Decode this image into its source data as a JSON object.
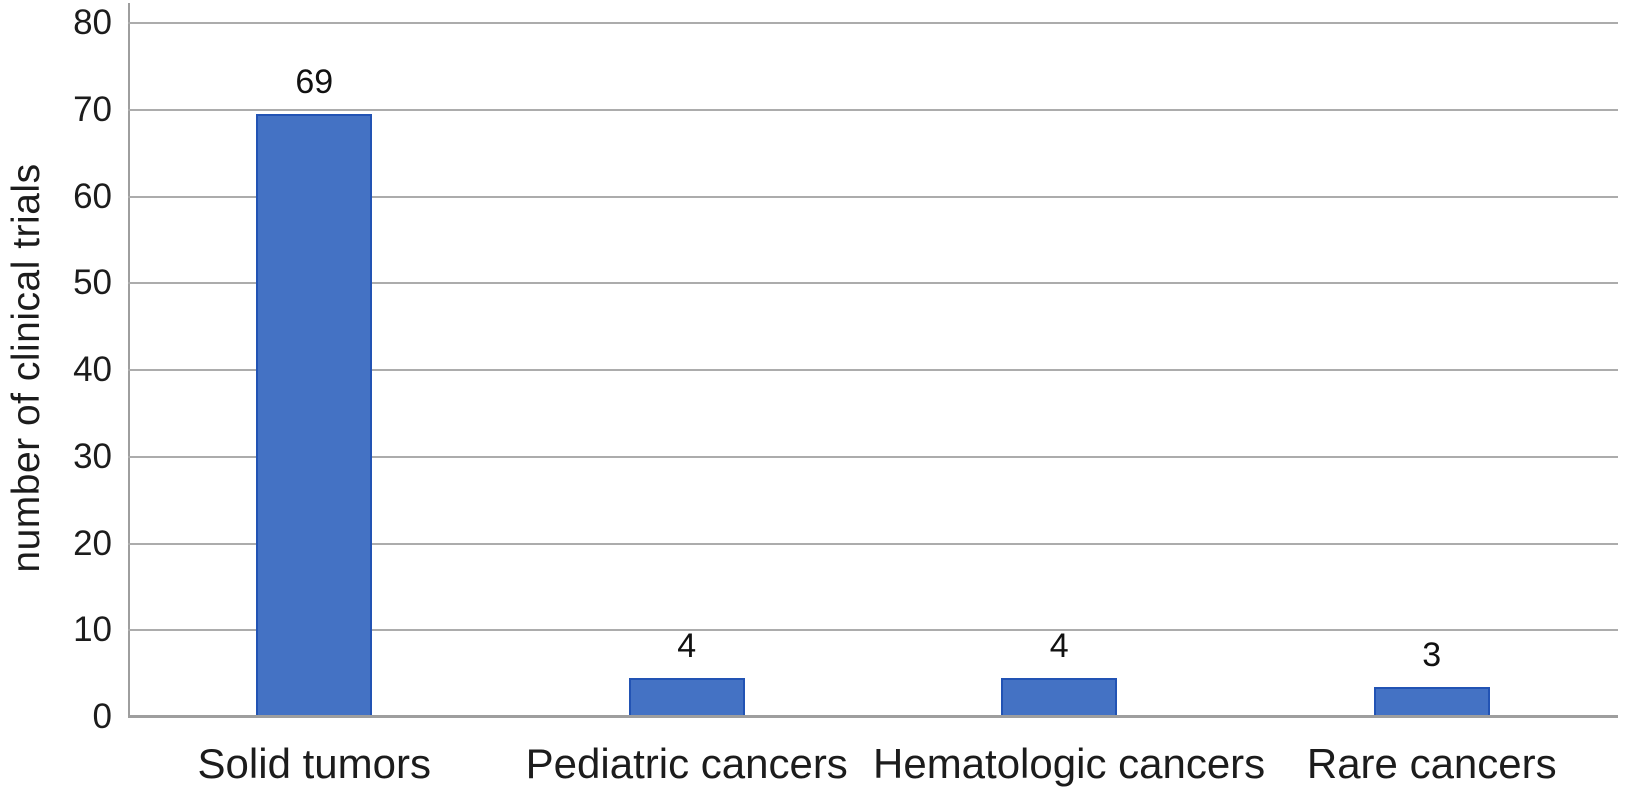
{
  "chart_data": {
    "type": "bar",
    "title": "",
    "categories": [
      "Solid tumors",
      "Pediatric cancers",
      "Hematologic cancers",
      "Rare cancers"
    ],
    "values": [
      69,
      4,
      4,
      3
    ],
    "xlabel": "",
    "ylabel": "number of clinical trials",
    "ylim": [
      0,
      80
    ],
    "yticks": [
      0,
      10,
      20,
      30,
      40,
      50,
      60,
      70,
      80
    ],
    "grid": "horizontal",
    "legend_position": "none",
    "bar_fill_color": "#4472c4",
    "bar_border_color": "#2253b4",
    "gridline_color": "#acacac",
    "axis_line_color": "#9e9e9e",
    "text_color": "#1c1c1c"
  }
}
